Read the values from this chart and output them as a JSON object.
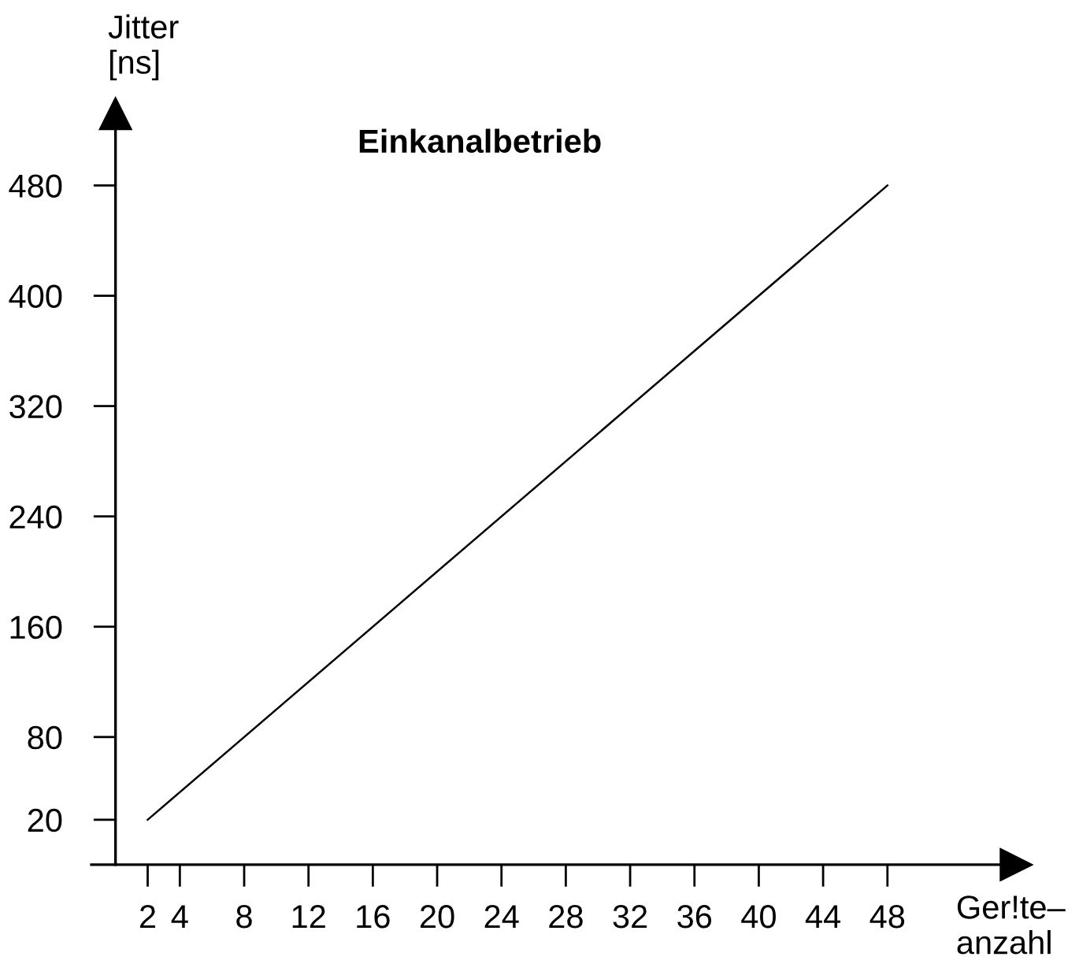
{
  "chart_data": {
    "type": "line",
    "title": "Einkanalbetrieb",
    "xlabel": "Ger!te–\nanzahl",
    "ylabel": "Jitter\n[ns]",
    "x": [
      2,
      48
    ],
    "series": [
      {
        "color": "#000000",
        "values": [
          20,
          480
        ]
      }
    ],
    "xlim": [
      -1.5,
      56
    ],
    "ylim": [
      -12.6,
      532
    ],
    "xticks": [
      2,
      4,
      8,
      12,
      16,
      20,
      24,
      28,
      32,
      36,
      40,
      44,
      48
    ],
    "yticks": [
      20,
      80,
      160,
      240,
      320,
      400,
      480
    ],
    "grid": false,
    "marker": "none",
    "line_style": "solid"
  }
}
